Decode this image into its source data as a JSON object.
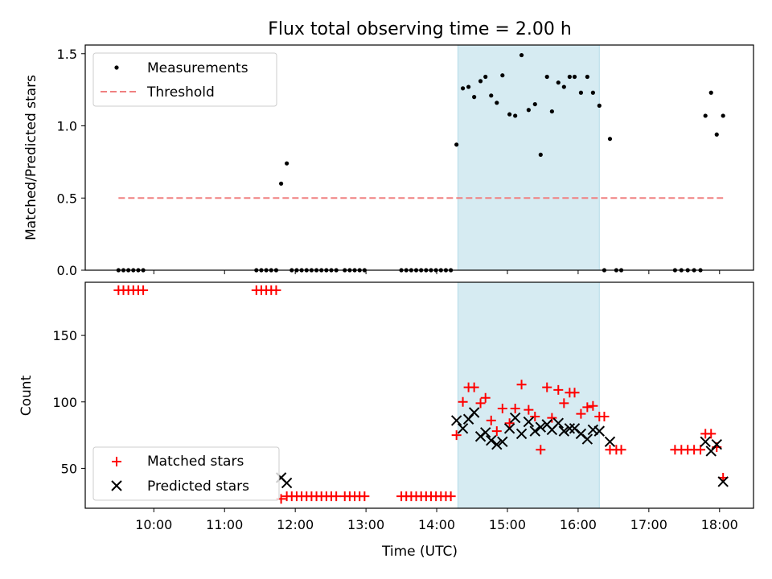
{
  "chart_data": [
    {
      "type": "scatter",
      "panel": "top",
      "title": "Flux total observing time = 2.00 h",
      "xlabel": "",
      "ylabel": "Matched/Predicted stars",
      "xlim": [
        9.03,
        18.48
      ],
      "ylim": [
        0.0,
        1.56
      ],
      "yticks": [
        0.0,
        0.5,
        1.0,
        1.5
      ],
      "ytick_labels": [
        "0.0",
        "0.5",
        "1.0",
        "1.5"
      ],
      "shade_range": [
        14.3,
        16.3
      ],
      "shade_color": "#add8e6",
      "threshold": {
        "name": "Threshold",
        "value": 0.5,
        "x_range": [
          9.5,
          18.05
        ],
        "color": "#f08080"
      },
      "legend": {
        "position": "upper-left",
        "entries": [
          "Measurements",
          "Threshold"
        ]
      },
      "series": [
        {
          "name": "Measurements",
          "marker": "dot",
          "color": "#000000",
          "points": [
            [
              9.5,
              0
            ],
            [
              9.57,
              0
            ],
            [
              9.64,
              0
            ],
            [
              9.71,
              0
            ],
            [
              9.78,
              0
            ],
            [
              9.85,
              0
            ],
            [
              11.45,
              0
            ],
            [
              11.52,
              0
            ],
            [
              11.59,
              0
            ],
            [
              11.66,
              0
            ],
            [
              11.73,
              0
            ],
            [
              11.8,
              0.6
            ],
            [
              11.88,
              0.74
            ],
            [
              11.95,
              0
            ],
            [
              12.02,
              0
            ],
            [
              12.09,
              0
            ],
            [
              12.16,
              0
            ],
            [
              12.23,
              0
            ],
            [
              12.3,
              0
            ],
            [
              12.37,
              0
            ],
            [
              12.44,
              0
            ],
            [
              12.51,
              0
            ],
            [
              12.58,
              0
            ],
            [
              12.7,
              0
            ],
            [
              12.77,
              0
            ],
            [
              12.84,
              0
            ],
            [
              12.91,
              0
            ],
            [
              12.98,
              0
            ],
            [
              13.5,
              0
            ],
            [
              13.57,
              0
            ],
            [
              13.64,
              0
            ],
            [
              13.71,
              0
            ],
            [
              13.78,
              0
            ],
            [
              13.85,
              0
            ],
            [
              13.92,
              0
            ],
            [
              13.99,
              0
            ],
            [
              14.06,
              0
            ],
            [
              14.13,
              0
            ],
            [
              14.2,
              0
            ],
            [
              14.28,
              0.87
            ],
            [
              14.37,
              1.26
            ],
            [
              14.45,
              1.27
            ],
            [
              14.53,
              1.2
            ],
            [
              14.62,
              1.31
            ],
            [
              14.69,
              1.34
            ],
            [
              14.77,
              1.21
            ],
            [
              14.85,
              1.16
            ],
            [
              14.93,
              1.35
            ],
            [
              15.03,
              1.08
            ],
            [
              15.11,
              1.07
            ],
            [
              15.2,
              1.49
            ],
            [
              15.3,
              1.11
            ],
            [
              15.39,
              1.15
            ],
            [
              15.47,
              0.8
            ],
            [
              15.56,
              1.34
            ],
            [
              15.63,
              1.1
            ],
            [
              15.72,
              1.3
            ],
            [
              15.8,
              1.27
            ],
            [
              15.88,
              1.34
            ],
            [
              15.95,
              1.34
            ],
            [
              16.04,
              1.23
            ],
            [
              16.13,
              1.34
            ],
            [
              16.21,
              1.23
            ],
            [
              16.3,
              1.14
            ],
            [
              16.45,
              0.91
            ],
            [
              16.37,
              0
            ],
            [
              16.54,
              0
            ],
            [
              16.61,
              0
            ],
            [
              17.37,
              0
            ],
            [
              17.46,
              0
            ],
            [
              17.55,
              0
            ],
            [
              17.64,
              0
            ],
            [
              17.73,
              0
            ],
            [
              17.8,
              1.07
            ],
            [
              17.88,
              1.23
            ],
            [
              17.96,
              0.94
            ],
            [
              18.05,
              1.07
            ]
          ]
        }
      ]
    },
    {
      "type": "scatter",
      "panel": "bottom",
      "xlabel": "Time (UTC)",
      "ylabel": "Count",
      "xlim": [
        9.03,
        18.48
      ],
      "ylim": [
        20,
        190
      ],
      "xticks": [
        10,
        11,
        12,
        13,
        14,
        15,
        16,
        17,
        18
      ],
      "xtick_labels": [
        "10:00",
        "11:00",
        "12:00",
        "13:00",
        "14:00",
        "15:00",
        "16:00",
        "17:00",
        "18:00"
      ],
      "yticks": [
        50,
        100,
        150
      ],
      "ytick_labels": [
        "50",
        "100",
        "150"
      ],
      "shade_range": [
        14.3,
        16.3
      ],
      "shade_color": "#add8e6",
      "legend": {
        "position": "lower-left",
        "entries": [
          "Matched stars",
          "Predicted stars"
        ]
      },
      "series": [
        {
          "name": "Matched stars",
          "marker": "plus",
          "color": "#ff0000",
          "points": [
            [
              9.5,
              184
            ],
            [
              9.57,
              184
            ],
            [
              9.64,
              184
            ],
            [
              9.71,
              184
            ],
            [
              9.78,
              184
            ],
            [
              9.85,
              184
            ],
            [
              11.45,
              184
            ],
            [
              11.52,
              184
            ],
            [
              11.59,
              184
            ],
            [
              11.66,
              184
            ],
            [
              11.73,
              184
            ],
            [
              11.8,
              27
            ],
            [
              11.88,
              29
            ],
            [
              11.95,
              29
            ],
            [
              12.02,
              29
            ],
            [
              12.09,
              29
            ],
            [
              12.16,
              29
            ],
            [
              12.23,
              29
            ],
            [
              12.3,
              29
            ],
            [
              12.37,
              29
            ],
            [
              12.44,
              29
            ],
            [
              12.51,
              29
            ],
            [
              12.58,
              29
            ],
            [
              12.7,
              29
            ],
            [
              12.77,
              29
            ],
            [
              12.84,
              29
            ],
            [
              12.91,
              29
            ],
            [
              12.98,
              29
            ],
            [
              13.5,
              29
            ],
            [
              13.57,
              29
            ],
            [
              13.64,
              29
            ],
            [
              13.71,
              29
            ],
            [
              13.78,
              29
            ],
            [
              13.85,
              29
            ],
            [
              13.92,
              29
            ],
            [
              13.99,
              29
            ],
            [
              14.06,
              29
            ],
            [
              14.13,
              29
            ],
            [
              14.2,
              29
            ],
            [
              14.28,
              75
            ],
            [
              14.37,
              100
            ],
            [
              14.45,
              111
            ],
            [
              14.53,
              111
            ],
            [
              14.62,
              99
            ],
            [
              14.69,
              103
            ],
            [
              14.77,
              86
            ],
            [
              14.85,
              78
            ],
            [
              14.93,
              95
            ],
            [
              15.03,
              84
            ],
            [
              15.11,
              95
            ],
            [
              15.2,
              113
            ],
            [
              15.3,
              94
            ],
            [
              15.39,
              89
            ],
            [
              15.47,
              64
            ],
            [
              15.56,
              111
            ],
            [
              15.63,
              88
            ],
            [
              15.72,
              109
            ],
            [
              15.8,
              99
            ],
            [
              15.88,
              107
            ],
            [
              15.95,
              107
            ],
            [
              16.04,
              91
            ],
            [
              16.13,
              96
            ],
            [
              16.21,
              97
            ],
            [
              16.3,
              89
            ],
            [
              16.37,
              89
            ],
            [
              16.45,
              64
            ],
            [
              16.54,
              64
            ],
            [
              16.61,
              64
            ],
            [
              17.37,
              64
            ],
            [
              17.46,
              64
            ],
            [
              17.55,
              64
            ],
            [
              17.64,
              64
            ],
            [
              17.73,
              64
            ],
            [
              17.8,
              76
            ],
            [
              17.88,
              76
            ],
            [
              17.96,
              66
            ],
            [
              18.05,
              43
            ]
          ]
        },
        {
          "name": "Predicted stars",
          "marker": "x",
          "color": "#000000",
          "points": [
            [
              11.8,
              43
            ],
            [
              11.88,
              39
            ],
            [
              14.28,
              86
            ],
            [
              14.37,
              80
            ],
            [
              14.45,
              87
            ],
            [
              14.53,
              92
            ],
            [
              14.62,
              74
            ],
            [
              14.69,
              77
            ],
            [
              14.77,
              71
            ],
            [
              14.85,
              68
            ],
            [
              14.93,
              70
            ],
            [
              15.03,
              80
            ],
            [
              15.11,
              88
            ],
            [
              15.2,
              76
            ],
            [
              15.3,
              85
            ],
            [
              15.39,
              78
            ],
            [
              15.47,
              81
            ],
            [
              15.56,
              83
            ],
            [
              15.63,
              79
            ],
            [
              15.72,
              84
            ],
            [
              15.8,
              78
            ],
            [
              15.88,
              80
            ],
            [
              15.95,
              80
            ],
            [
              16.04,
              76
            ],
            [
              16.13,
              72
            ],
            [
              16.21,
              79
            ],
            [
              16.3,
              78
            ],
            [
              16.45,
              70
            ],
            [
              17.8,
              70
            ],
            [
              17.88,
              63
            ],
            [
              17.96,
              68
            ],
            [
              18.05,
              40
            ]
          ]
        }
      ]
    }
  ]
}
